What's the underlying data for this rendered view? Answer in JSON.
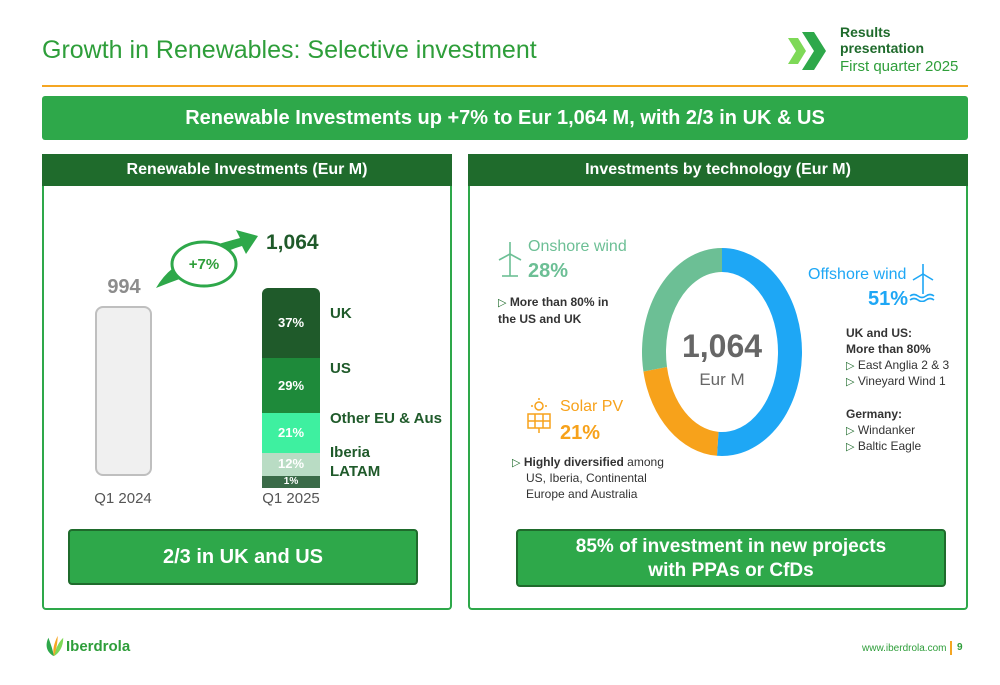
{
  "header": {
    "title": "Growth in Renewables: Selective investment",
    "results_line1": "Results",
    "results_line2": "presentation",
    "results_line3": "First quarter 2025"
  },
  "banner": "Renewable Investments up +7% to Eur 1,064 M, with 2/3 in UK & US",
  "left_panel": {
    "heading": "Renewable Investments (Eur M)",
    "growth_label": "+7%",
    "bottom_text": "2/3 in UK and US"
  },
  "right_panel": {
    "heading": "Investments by technology (Eur M)",
    "center_value": "1,064",
    "center_unit": "Eur M",
    "onshore": {
      "name": "Onshore wind",
      "pct": "28%",
      "note": "More than 80% in the US and UK"
    },
    "offshore": {
      "name": "Offshore wind",
      "pct": "51%",
      "note_head1": "UK and US:",
      "note_head2": "More than 80%",
      "item1": "East Anglia 2 & 3",
      "item2": "Vineyard Wind 1",
      "germany_head": "Germany:",
      "item3": "Windanker",
      "item4": "Baltic Eagle"
    },
    "solar": {
      "name": "Solar PV",
      "pct": "21%",
      "note_bold": "Highly diversified",
      "note_rest": " among",
      "note_line2": "US, Iberia, Continental",
      "note_line3": "Europe and Australia"
    },
    "bottom_text_line1": "85% of investment in new projects",
    "bottom_text_line2": "with PPAs or CfDs"
  },
  "chart_data": [
    {
      "type": "bar",
      "title": "Renewable Investments (Eur M)",
      "categories": [
        "Q1 2024",
        "Q1 2025"
      ],
      "values": [
        994,
        1064
      ],
      "value_labels": [
        "994",
        "1,064"
      ],
      "stack_q1_2025": [
        {
          "name": "UK",
          "pct": 37,
          "label": "37%",
          "color": "#1f5a2a"
        },
        {
          "name": "US",
          "pct": 29,
          "label": "29%",
          "color": "#1e8a3a"
        },
        {
          "name": "Other EU & Aus",
          "pct": 21,
          "label": "21%",
          "color": "#3ef0a0"
        },
        {
          "name": "Iberia",
          "pct": 12,
          "label": "12%",
          "color": "#b9dcc4"
        },
        {
          "name": "LATAM",
          "pct": 1,
          "label": "1%",
          "color": "#3a6b48"
        }
      ],
      "growth": "+7%"
    },
    {
      "type": "pie",
      "title": "Investments by technology (Eur M)",
      "total": "1,064",
      "slices": [
        {
          "name": "Offshore wind",
          "value": 51,
          "color": "#1ea7f5"
        },
        {
          "name": "Solar PV",
          "value": 21,
          "color": "#f7a21b"
        },
        {
          "name": "Onshore wind",
          "value": 28,
          "color": "#6cbf95"
        }
      ]
    }
  ],
  "footer": {
    "logo_text": "Iberdrola",
    "url": "www.iberdrola.com",
    "page": "9"
  },
  "colors": {
    "brand_green": "#2ea84a",
    "dark_green": "#1f6b2c",
    "accent_orange": "#f5a623"
  }
}
